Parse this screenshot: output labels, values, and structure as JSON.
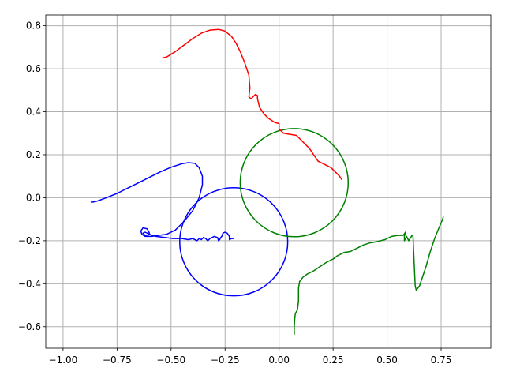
{
  "chart_data": {
    "type": "line",
    "title": "",
    "xlabel": "",
    "ylabel": "",
    "xlim": [
      -1.08,
      0.98
    ],
    "ylim": [
      -0.7,
      0.85
    ],
    "grid": true,
    "legend": "none",
    "xticks": [
      -1.0,
      -0.75,
      -0.5,
      -0.25,
      0.0,
      0.25,
      0.5,
      0.75
    ],
    "xtick_labels": [
      "−1.00",
      "−0.75",
      "−0.50",
      "−0.25",
      "0.00",
      "0.25",
      "0.50",
      "0.75"
    ],
    "yticks": [
      -0.6,
      -0.4,
      -0.2,
      0.0,
      0.2,
      0.4,
      0.6,
      0.8
    ],
    "ytick_labels": [
      "−0.6",
      "−0.4",
      "−0.2",
      "0.0",
      "0.2",
      "0.4",
      "0.6",
      "0.8"
    ],
    "circles": [
      {
        "color": "#0000ff",
        "cx": -0.21,
        "cy": -0.205,
        "r": 0.25
      },
      {
        "color": "#008000",
        "cx": 0.07,
        "cy": 0.07,
        "r": 0.25
      }
    ],
    "series": [
      {
        "color": "#ff0000",
        "x": [
          -0.54,
          -0.52,
          -0.48,
          -0.44,
          -0.4,
          -0.36,
          -0.32,
          -0.28,
          -0.25,
          -0.22,
          -0.2,
          -0.18,
          -0.16,
          -0.14,
          -0.135,
          -0.14,
          -0.13,
          -0.12,
          -0.11,
          -0.1,
          -0.1,
          -0.09,
          -0.07,
          -0.05,
          -0.02,
          0.0,
          0.0,
          0.02,
          0.05,
          0.08,
          0.1,
          0.12,
          0.14,
          0.16,
          0.18,
          0.21,
          0.24,
          0.26,
          0.28,
          0.29
        ],
        "y": [
          0.65,
          0.655,
          0.68,
          0.71,
          0.74,
          0.765,
          0.78,
          0.783,
          0.775,
          0.75,
          0.72,
          0.68,
          0.63,
          0.57,
          0.51,
          0.47,
          0.46,
          0.47,
          0.48,
          0.475,
          0.46,
          0.42,
          0.39,
          0.37,
          0.35,
          0.345,
          0.32,
          0.3,
          0.295,
          0.29,
          0.27,
          0.25,
          0.23,
          0.2,
          0.17,
          0.155,
          0.14,
          0.12,
          0.1,
          0.085
        ]
      },
      {
        "color": "#0000ff",
        "x": [
          -0.87,
          -0.86,
          -0.84,
          -0.8,
          -0.75,
          -0.7,
          -0.65,
          -0.6,
          -0.55,
          -0.5,
          -0.45,
          -0.42,
          -0.39,
          -0.37,
          -0.355,
          -0.355,
          -0.37,
          -0.4,
          -0.44,
          -0.48,
          -0.52,
          -0.56,
          -0.59,
          -0.62,
          -0.635,
          -0.64,
          -0.63,
          -0.61,
          -0.6,
          -0.61,
          -0.62,
          -0.63,
          -0.62,
          -0.6,
          -0.57,
          -0.53,
          -0.49,
          -0.45,
          -0.42,
          -0.4,
          -0.38,
          -0.37,
          -0.36,
          -0.35,
          -0.34,
          -0.33,
          -0.32,
          -0.3,
          -0.285,
          -0.28,
          -0.275,
          -0.27,
          -0.265,
          -0.26,
          -0.25,
          -0.24,
          -0.23,
          -0.23,
          -0.22,
          -0.21
        ],
        "y": [
          -0.02,
          -0.02,
          -0.015,
          0.0,
          0.02,
          0.045,
          0.07,
          0.095,
          0.12,
          0.142,
          0.158,
          0.163,
          0.16,
          0.14,
          0.1,
          0.06,
          0.0,
          -0.06,
          -0.11,
          -0.15,
          -0.17,
          -0.175,
          -0.18,
          -0.18,
          -0.17,
          -0.155,
          -0.14,
          -0.145,
          -0.165,
          -0.18,
          -0.175,
          -0.165,
          -0.16,
          -0.17,
          -0.18,
          -0.185,
          -0.19,
          -0.19,
          -0.195,
          -0.19,
          -0.2,
          -0.19,
          -0.195,
          -0.185,
          -0.19,
          -0.2,
          -0.19,
          -0.18,
          -0.185,
          -0.2,
          -0.195,
          -0.185,
          -0.18,
          -0.165,
          -0.16,
          -0.165,
          -0.18,
          -0.195,
          -0.19,
          -0.19
        ]
      },
      {
        "color": "#008000",
        "x": [
          0.07,
          0.07,
          0.072,
          0.075,
          0.085,
          0.09,
          0.09,
          0.095,
          0.11,
          0.13,
          0.16,
          0.19,
          0.22,
          0.25,
          0.27,
          0.3,
          0.33,
          0.36,
          0.39,
          0.42,
          0.45,
          0.49,
          0.52,
          0.55,
          0.575,
          0.585,
          0.58,
          0.58,
          0.59,
          0.6,
          0.615,
          0.62,
          0.625,
          0.63,
          0.635,
          0.65,
          0.66,
          0.68,
          0.7,
          0.72,
          0.74,
          0.755,
          0.76
        ],
        "y": [
          -0.635,
          -0.6,
          -0.57,
          -0.54,
          -0.52,
          -0.48,
          -0.42,
          -0.39,
          -0.37,
          -0.355,
          -0.34,
          -0.32,
          -0.3,
          -0.285,
          -0.27,
          -0.255,
          -0.25,
          -0.235,
          -0.22,
          -0.21,
          -0.205,
          -0.195,
          -0.18,
          -0.175,
          -0.175,
          -0.16,
          -0.18,
          -0.2,
          -0.18,
          -0.2,
          -0.175,
          -0.18,
          -0.3,
          -0.41,
          -0.43,
          -0.41,
          -0.38,
          -0.32,
          -0.25,
          -0.19,
          -0.14,
          -0.105,
          -0.09
        ]
      }
    ]
  }
}
